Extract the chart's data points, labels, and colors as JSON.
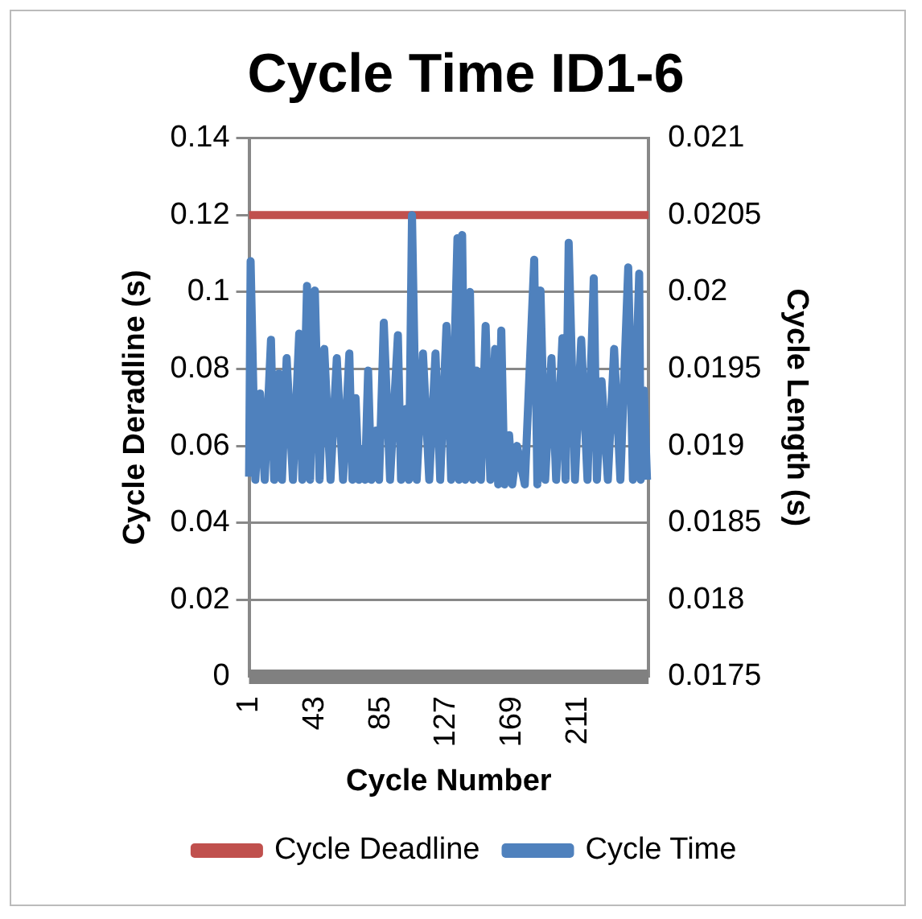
{
  "chart_data": {
    "type": "line",
    "title": "Cycle Time ID1-6",
    "xlabel": "Cycle Number",
    "ylabel": "Cycle Deradline (s)",
    "y2label": "Cycle Length (s)",
    "xlim": [
      1,
      256
    ],
    "xticks": [
      1,
      43,
      85,
      127,
      169,
      211
    ],
    "ylim": [
      0,
      0.14
    ],
    "yticks": [
      0,
      0.02,
      0.04,
      0.06,
      0.08,
      0.1,
      0.12,
      0.14
    ],
    "y2lim": [
      0.0175,
      0.021
    ],
    "y2ticks": [
      0.0175,
      0.018,
      0.0185,
      0.019,
      0.0195,
      0.02,
      0.0205,
      0.021
    ],
    "grid": "y",
    "legend": "bottom",
    "marker": "none",
    "series": [
      {
        "name": "Cycle Deadline",
        "color": "#c0504d",
        "x": [
          1,
          256
        ],
        "values": [
          0.12,
          0.12
        ]
      },
      {
        "name": "Cycle Time",
        "color": "#4f81bd",
        "axis": "y2",
        "x": [
          1,
          2,
          5,
          8,
          11,
          15,
          17,
          20,
          22,
          25,
          29,
          33,
          35,
          38,
          40,
          43,
          46,
          49,
          53,
          57,
          61,
          65,
          67,
          69,
          71,
          73,
          75,
          77,
          79,
          82,
          84,
          87,
          91,
          96,
          98,
          101,
          103,
          105,
          108,
          112,
          116,
          120,
          123,
          127,
          130,
          134,
          135,
          137,
          139,
          142,
          144,
          146,
          149,
          152,
          155,
          158,
          160,
          162,
          164,
          167,
          169,
          172,
          177,
          183,
          185,
          187,
          190,
          194,
          197,
          201,
          203,
          205,
          209,
          213,
          217,
          221,
          223,
          226,
          230,
          234,
          238,
          243,
          246,
          250,
          251,
          253,
          255
        ],
        "values": [
          0.0188,
          0.0202,
          0.01878,
          0.01934,
          0.01878,
          0.01969,
          0.01878,
          0.01947,
          0.01878,
          0.01957,
          0.01878,
          0.01973,
          0.01878,
          0.02004,
          0.01878,
          0.02001,
          0.01878,
          0.01963,
          0.01878,
          0.01957,
          0.01878,
          0.0196,
          0.01878,
          0.01931,
          0.01878,
          0.01898,
          0.01878,
          0.01949,
          0.01878,
          0.0191,
          0.01878,
          0.0198,
          0.01878,
          0.01972,
          0.01878,
          0.01924,
          0.01878,
          0.0205,
          0.01878,
          0.0196,
          0.01878,
          0.0196,
          0.01878,
          0.01978,
          0.01878,
          0.02035,
          0.01878,
          0.02037,
          0.01878,
          0.02,
          0.01878,
          0.01949,
          0.01878,
          0.01978,
          0.01878,
          0.01963,
          0.01875,
          0.01975,
          0.01875,
          0.01907,
          0.01875,
          0.019,
          0.01875,
          0.02021,
          0.01875,
          0.02001,
          0.01878,
          0.01957,
          0.01878,
          0.0197,
          0.01878,
          0.02032,
          0.01878,
          0.01969,
          0.01878,
          0.02009,
          0.01878,
          0.01942,
          0.01878,
          0.01963,
          0.01878,
          0.02016,
          0.01878,
          0.02012,
          0.01878,
          0.01936,
          0.01878
        ]
      },
      {
        "color": "#808080",
        "x": [
          1,
          256
        ],
        "values": [
          0,
          0
        ]
      }
    ]
  }
}
